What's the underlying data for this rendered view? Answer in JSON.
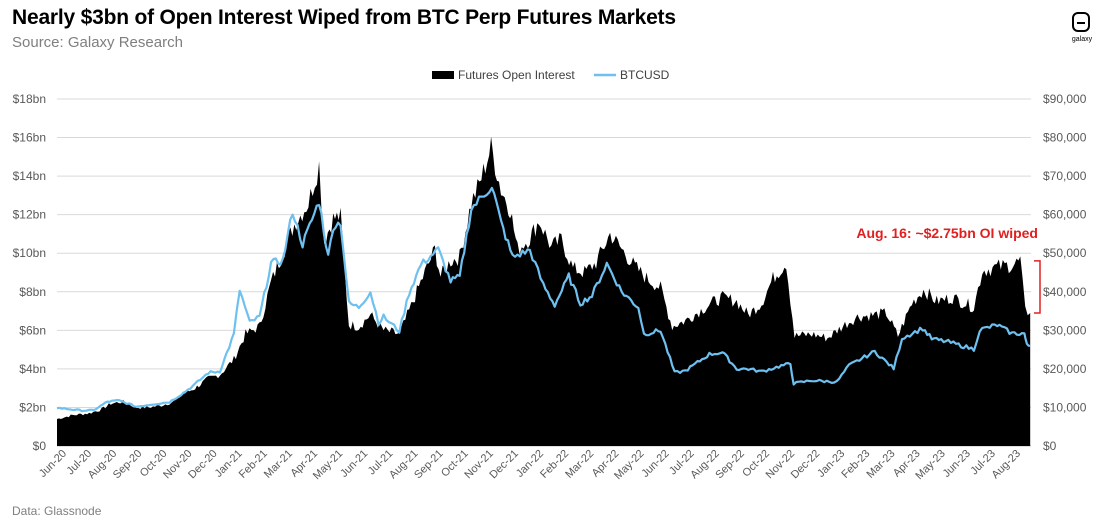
{
  "title": "Nearly $3bn of Open Interest Wiped from BTC Perp Futures Markets",
  "subtitle": "Source: Galaxy Research",
  "footer": "Data: Glassnode",
  "logo_text": "galaxy",
  "annotation": "Aug. 16: ~$2.75bn OI wiped",
  "colors": {
    "oi": "#000000",
    "btc": "#6ec0f0",
    "annotation": "#e02020",
    "grid": "#d9d9d9"
  },
  "chart_data": {
    "type": "area",
    "legend": [
      {
        "name": "Futures Open Interest",
        "style": "area",
        "color": "#000000"
      },
      {
        "name": "BTCUSD",
        "style": "line",
        "color": "#6ec0f0"
      }
    ],
    "legend_position": "top-center",
    "grid": true,
    "x_labels": [
      "Jun-20",
      "Jul-20",
      "Aug-20",
      "Sep-20",
      "Oct-20",
      "Nov-20",
      "Dec-20",
      "Jan-21",
      "Feb-21",
      "Mar-21",
      "Apr-21",
      "May-21",
      "Jun-21",
      "Jul-21",
      "Aug-21",
      "Sep-21",
      "Oct-21",
      "Nov-21",
      "Dec-21",
      "Jan-22",
      "Feb-22",
      "Mar-22",
      "Apr-22",
      "May-22",
      "Jun-22",
      "Jul-22",
      "Aug-22",
      "Sep-22",
      "Oct-22",
      "Nov-22",
      "Dec-22",
      "Jan-23",
      "Feb-23",
      "Mar-23",
      "Apr-23",
      "May-23",
      "Jun-23",
      "Jul-23",
      "Aug-23"
    ],
    "y_left": {
      "range": [
        0,
        18
      ],
      "ticks": [
        "$0",
        "$2bn",
        "$4bn",
        "$6bn",
        "$8bn",
        "$10bn",
        "$12bn",
        "$14bn",
        "$16bn",
        "$18bn"
      ]
    },
    "y_right": {
      "range": [
        0,
        90000
      ],
      "ticks": [
        "$0",
        "$10,000",
        "$20,000",
        "$30,000",
        "$40,000",
        "$50,000",
        "$60,000",
        "$70,000",
        "$80,000",
        "$90,000"
      ]
    },
    "series": [
      {
        "name": "Futures Open Interest",
        "unit": "$bn",
        "points": [
          [
            "2020-06-01",
            1.4
          ],
          [
            "2020-06-20",
            1.6
          ],
          [
            "2020-07-10",
            1.7
          ],
          [
            "2020-07-25",
            1.9
          ],
          [
            "2020-08-05",
            2.2
          ],
          [
            "2020-08-20",
            2.3
          ],
          [
            "2020-09-05",
            2.0
          ],
          [
            "2020-09-20",
            2.0
          ],
          [
            "2020-10-05",
            2.1
          ],
          [
            "2020-10-20",
            2.3
          ],
          [
            "2020-11-01",
            2.7
          ],
          [
            "2020-11-15",
            3.0
          ],
          [
            "2020-12-01",
            3.5
          ],
          [
            "2020-12-15",
            3.7
          ],
          [
            "2021-01-01",
            4.5
          ],
          [
            "2021-01-15",
            5.8
          ],
          [
            "2021-02-01",
            6.2
          ],
          [
            "2021-02-15",
            8.5
          ],
          [
            "2021-03-01",
            10.0
          ],
          [
            "2021-03-15",
            11.5
          ],
          [
            "2021-04-01",
            12.6
          ],
          [
            "2021-04-14",
            14.6
          ],
          [
            "2021-04-20",
            10.6
          ],
          [
            "2021-05-01",
            11.8
          ],
          [
            "2021-05-10",
            11.9
          ],
          [
            "2021-05-20",
            6.3
          ],
          [
            "2021-06-01",
            6.2
          ],
          [
            "2021-06-15",
            6.8
          ],
          [
            "2021-07-01",
            6.0
          ],
          [
            "2021-07-20",
            5.8
          ],
          [
            "2021-08-01",
            7.0
          ],
          [
            "2021-08-15",
            8.5
          ],
          [
            "2021-09-01",
            10.2
          ],
          [
            "2021-09-08",
            8.8
          ],
          [
            "2021-09-20",
            9.6
          ],
          [
            "2021-10-01",
            9.8
          ],
          [
            "2021-10-15",
            12.6
          ],
          [
            "2021-10-25",
            13.6
          ],
          [
            "2021-11-08",
            15.5
          ],
          [
            "2021-11-20",
            13.3
          ],
          [
            "2021-12-01",
            12.3
          ],
          [
            "2021-12-10",
            10.2
          ],
          [
            "2021-12-25",
            10.8
          ],
          [
            "2022-01-05",
            11.7
          ],
          [
            "2022-01-20",
            10.3
          ],
          [
            "2022-02-01",
            10.7
          ],
          [
            "2022-02-15",
            9.2
          ],
          [
            "2022-03-01",
            9.0
          ],
          [
            "2022-03-15",
            9.5
          ],
          [
            "2022-04-01",
            11.0
          ],
          [
            "2022-04-15",
            10.2
          ],
          [
            "2022-05-01",
            9.3
          ],
          [
            "2022-05-15",
            8.7
          ],
          [
            "2022-06-01",
            8.2
          ],
          [
            "2022-06-15",
            6.2
          ],
          [
            "2022-07-01",
            6.5
          ],
          [
            "2022-07-15",
            6.9
          ],
          [
            "2022-08-01",
            7.4
          ],
          [
            "2022-08-15",
            7.7
          ],
          [
            "2022-09-01",
            7.5
          ],
          [
            "2022-09-15",
            6.8
          ],
          [
            "2022-10-01",
            7.4
          ],
          [
            "2022-10-15",
            8.7
          ],
          [
            "2022-10-31",
            9.5
          ],
          [
            "2022-11-10",
            5.7
          ],
          [
            "2022-12-01",
            5.8
          ],
          [
            "2022-12-20",
            5.6
          ],
          [
            "2023-01-10",
            6.3
          ],
          [
            "2023-01-25",
            6.7
          ],
          [
            "2023-02-15",
            6.8
          ],
          [
            "2023-03-01",
            6.9
          ],
          [
            "2023-03-15",
            5.7
          ],
          [
            "2023-04-01",
            7.4
          ],
          [
            "2023-04-15",
            8.1
          ],
          [
            "2023-05-01",
            7.5
          ],
          [
            "2023-05-20",
            7.7
          ],
          [
            "2023-06-15",
            7.2
          ],
          [
            "2023-06-25",
            9.1
          ],
          [
            "2023-07-15",
            9.3
          ],
          [
            "2023-08-01",
            9.4
          ],
          [
            "2023-08-10",
            9.6
          ],
          [
            "2023-08-16",
            7.0
          ],
          [
            "2023-08-22",
            6.9
          ]
        ]
      },
      {
        "name": "BTCUSD",
        "unit": "$",
        "points": [
          [
            "2020-06-01",
            9900
          ],
          [
            "2020-07-01",
            9200
          ],
          [
            "2020-07-15",
            9250
          ],
          [
            "2020-08-01",
            11500
          ],
          [
            "2020-08-15",
            11800
          ],
          [
            "2020-09-05",
            10200
          ],
          [
            "2020-09-20",
            10700
          ],
          [
            "2020-10-15",
            11400
          ],
          [
            "2020-11-01",
            13800
          ],
          [
            "2020-11-15",
            16000
          ],
          [
            "2020-12-01",
            19000
          ],
          [
            "2020-12-15",
            19400
          ],
          [
            "2021-01-01",
            29000
          ],
          [
            "2021-01-08",
            40500
          ],
          [
            "2021-01-20",
            32000
          ],
          [
            "2021-02-01",
            33500
          ],
          [
            "2021-02-15",
            47500
          ],
          [
            "2021-03-01",
            48000
          ],
          [
            "2021-03-13",
            61000
          ],
          [
            "2021-03-25",
            52300
          ],
          [
            "2021-04-14",
            63500
          ],
          [
            "2021-04-25",
            49000
          ],
          [
            "2021-05-01",
            57000
          ],
          [
            "2021-05-10",
            58000
          ],
          [
            "2021-05-20",
            37000
          ],
          [
            "2021-06-01",
            36000
          ],
          [
            "2021-06-15",
            40000
          ],
          [
            "2021-06-25",
            32000
          ],
          [
            "2021-07-01",
            33500
          ],
          [
            "2021-07-20",
            29800
          ],
          [
            "2021-08-01",
            39800
          ],
          [
            "2021-08-15",
            47000
          ],
          [
            "2021-09-05",
            51000
          ],
          [
            "2021-09-20",
            42800
          ],
          [
            "2021-10-01",
            43800
          ],
          [
            "2021-10-15",
            61500
          ],
          [
            "2021-11-09",
            67500
          ],
          [
            "2021-11-20",
            58000
          ],
          [
            "2021-12-04",
            49000
          ],
          [
            "2021-12-25",
            50800
          ],
          [
            "2022-01-10",
            41800
          ],
          [
            "2022-01-24",
            36600
          ],
          [
            "2022-02-10",
            44000
          ],
          [
            "2022-02-24",
            37000
          ],
          [
            "2022-03-10",
            39000
          ],
          [
            "2022-03-28",
            47300
          ],
          [
            "2022-04-15",
            40000
          ],
          [
            "2022-05-05",
            36000
          ],
          [
            "2022-05-12",
            29000
          ],
          [
            "2022-06-01",
            30000
          ],
          [
            "2022-06-18",
            19000
          ],
          [
            "2022-07-01",
            19500
          ],
          [
            "2022-07-30",
            23800
          ],
          [
            "2022-08-15",
            24300
          ],
          [
            "2022-09-01",
            20000
          ],
          [
            "2022-09-15",
            20000
          ],
          [
            "2022-10-01",
            19300
          ],
          [
            "2022-10-25",
            20800
          ],
          [
            "2022-11-05",
            21300
          ],
          [
            "2022-11-09",
            16200
          ],
          [
            "2022-12-01",
            17000
          ],
          [
            "2022-12-31",
            16600
          ],
          [
            "2023-01-15",
            20900
          ],
          [
            "2023-02-15",
            24500
          ],
          [
            "2023-03-10",
            20100
          ],
          [
            "2023-03-20",
            28000
          ],
          [
            "2023-04-14",
            30500
          ],
          [
            "2023-04-25",
            27800
          ],
          [
            "2023-05-15",
            27000
          ],
          [
            "2023-06-15",
            25100
          ],
          [
            "2023-06-22",
            30100
          ],
          [
            "2023-07-13",
            31400
          ],
          [
            "2023-07-31",
            29200
          ],
          [
            "2023-08-15",
            29200
          ],
          [
            "2023-08-18",
            26100
          ],
          [
            "2023-08-22",
            26000
          ]
        ]
      }
    ]
  }
}
